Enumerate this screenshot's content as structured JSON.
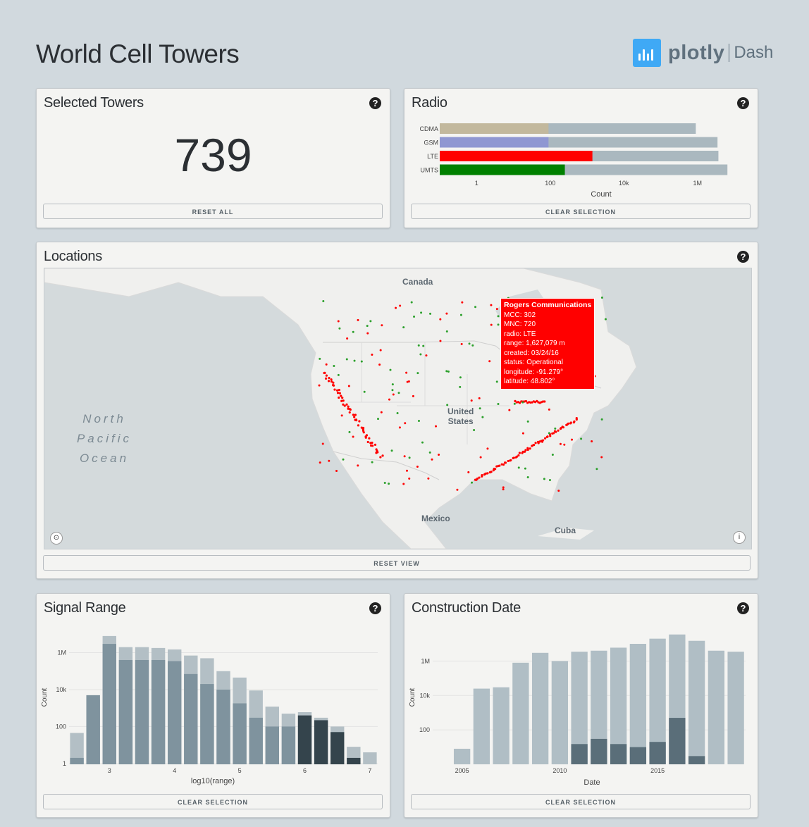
{
  "header": {
    "title": "World Cell Towers",
    "logo_text": "plotly",
    "logo_product": "Dash"
  },
  "selected_towers": {
    "title": "Selected Towers",
    "count": "739",
    "help": "?",
    "reset_label": "RESET ALL"
  },
  "radio": {
    "title": "Radio",
    "help": "?",
    "clear_label": "CLEAR SELECTION"
  },
  "locations": {
    "title": "Locations",
    "help": "?",
    "reset_view_label": "RESET VIEW",
    "ocean_label": "North\nPacific\nOcean",
    "labels": {
      "canada": "Canada",
      "us": "United\nStates",
      "mexico": "Mexico",
      "cuba": "Cuba"
    },
    "tooltip": {
      "title": "Rogers Communications",
      "lines": [
        "MCC: 302",
        "MNC: 720",
        "radio: LTE",
        "range: 1,627,079 m",
        "created: 03/24/16",
        "status: Operational",
        "longitude: -91.279°",
        "latitude: 48.802°"
      ]
    },
    "colors": {
      "selected": "#ff0000",
      "other": "#2ca02c"
    }
  },
  "signal_range": {
    "title": "Signal Range",
    "help": "?",
    "clear_label": "CLEAR SELECTION"
  },
  "construction_date": {
    "title": "Construction Date",
    "help": "?",
    "clear_label": "CLEAR SELECTION"
  },
  "chart_data": [
    {
      "id": "radio",
      "type": "bar",
      "orientation": "horizontal",
      "xscale": "log",
      "categories": [
        "CDMA",
        "GSM",
        "LTE",
        "UMTS"
      ],
      "series": [
        {
          "name": "All",
          "values": [
            900000,
            3500000,
            3700000,
            6500000
          ],
          "color": "#aab8bf"
        },
        {
          "name": "Selected",
          "values": [
            90,
            90,
            1400,
            250
          ],
          "colors": [
            "#c2b89d",
            "#8f97d2",
            "#ff0000",
            "#008000"
          ]
        }
      ],
      "xlabel": "Count",
      "xticks": [
        1,
        100,
        10000,
        1000000
      ],
      "xtick_labels": [
        "1",
        "100",
        "10k",
        "1M"
      ],
      "xlim": [
        0.1,
        10000000
      ]
    },
    {
      "id": "signal_range",
      "type": "bar",
      "yscale": "log",
      "x": [
        2.5,
        2.75,
        3.0,
        3.25,
        3.5,
        3.75,
        4.0,
        4.25,
        4.5,
        4.75,
        5.0,
        5.25,
        5.5,
        5.75,
        6.0,
        6.25,
        6.5,
        6.75,
        7.0
      ],
      "series": [
        {
          "name": "All",
          "values": [
            45,
            3000,
            8000000,
            2000000,
            2000000,
            1800000,
            1500000,
            700000,
            500000,
            100000,
            45000,
            9000,
            1200,
            500,
            600,
            300,
            100,
            8,
            4
          ],
          "color": "#b3bfc5"
        },
        {
          "name": "Selected",
          "values": [
            2,
            5000,
            3000000,
            400000,
            400000,
            400000,
            350000,
            70000,
            20000,
            10000,
            1800,
            300,
            100,
            100,
            400,
            220,
            50,
            2,
            0
          ],
          "color": "#7f939e"
        }
      ],
      "highlight_bins": [
        6.0,
        6.25,
        6.5,
        6.75
      ],
      "highlight_color": "#34444c",
      "xlabel": "log10(range)",
      "ylabel": "Count",
      "xticks": [
        3,
        4,
        5,
        6,
        7
      ],
      "yticks": [
        1,
        100,
        10000,
        1000000
      ],
      "ytick_labels": [
        "1",
        "100",
        "10k",
        "1M"
      ],
      "xlim": [
        2.38,
        7.12
      ],
      "ylim": [
        0.9,
        16000000
      ]
    },
    {
      "id": "construction_date",
      "type": "bar",
      "yscale": "log",
      "x": [
        2004,
        2005,
        2006,
        2007,
        2008,
        2009,
        2010,
        2011,
        2012,
        2013,
        2014,
        2015,
        2016,
        2017,
        2018,
        2019
      ],
      "series": [
        {
          "name": "All",
          "values": [
            0,
            8,
            25000,
            30000,
            800000,
            3000000,
            1000000,
            3500000,
            4000000,
            6000000,
            10000000,
            20000000,
            35000000,
            15000000,
            4000000,
            3500000
          ],
          "color": "#b0bec5"
        },
        {
          "name": "Selected",
          "values": [
            0,
            0,
            0,
            0,
            0,
            0,
            0,
            15,
            30,
            15,
            10,
            20,
            500,
            3,
            0,
            0
          ],
          "color": "#5a6e79"
        }
      ],
      "xlabel": "Date",
      "ylabel": "Count",
      "xticks": [
        2005,
        2010,
        2015
      ],
      "yticks": [
        100,
        10000,
        1000000
      ],
      "ytick_labels": [
        "100",
        "10k",
        "1M"
      ],
      "xlim": [
        2003.5,
        2019.5
      ],
      "ylim": [
        1,
        60000000
      ]
    }
  ]
}
